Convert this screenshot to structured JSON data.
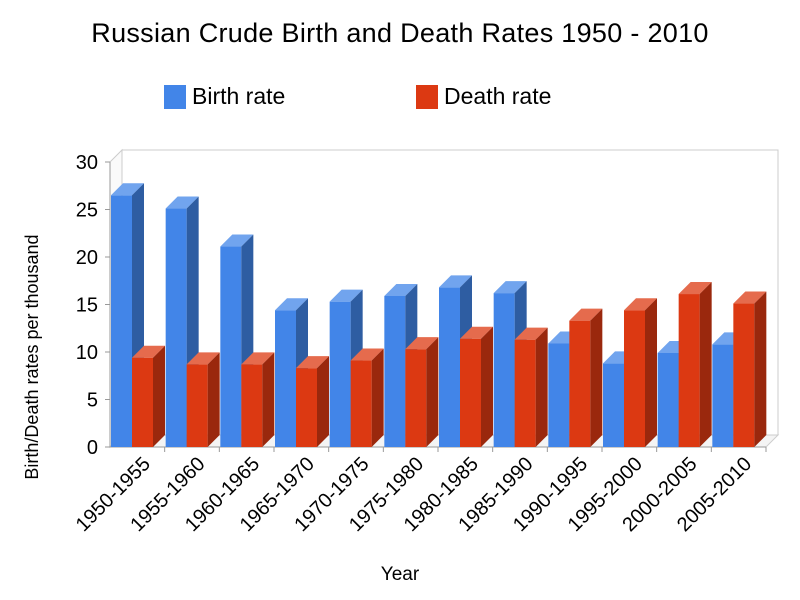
{
  "chart_data": {
    "type": "bar",
    "title": "Russian Crude Birth and Death Rates 1950 - 2010",
    "xlabel": "Year",
    "ylabel": "Birth/Death rates per thousand",
    "ylim": [
      0,
      30
    ],
    "yticks": [
      0,
      5,
      10,
      15,
      20,
      25,
      30
    ],
    "grid": false,
    "legend_position": "top",
    "categories": [
      "1950-1955",
      "1955-1960",
      "1960-1965",
      "1965-1970",
      "1970-1975",
      "1975-1980",
      "1980-1985",
      "1985-1990",
      "1990-1995",
      "1995-2000",
      "2000-2005",
      "2005-2010"
    ],
    "series": [
      {
        "name": "Birth rate",
        "color": "#4285e8",
        "values": [
          26.5,
          25.1,
          21.1,
          14.4,
          15.3,
          15.9,
          16.8,
          16.2,
          10.9,
          8.8,
          9.9,
          10.8
        ]
      },
      {
        "name": "Death rate",
        "color": "#dc3912",
        "values": [
          9.4,
          8.7,
          8.7,
          8.3,
          9.1,
          10.3,
          11.4,
          11.3,
          13.3,
          14.4,
          16.1,
          15.1
        ]
      }
    ]
  }
}
